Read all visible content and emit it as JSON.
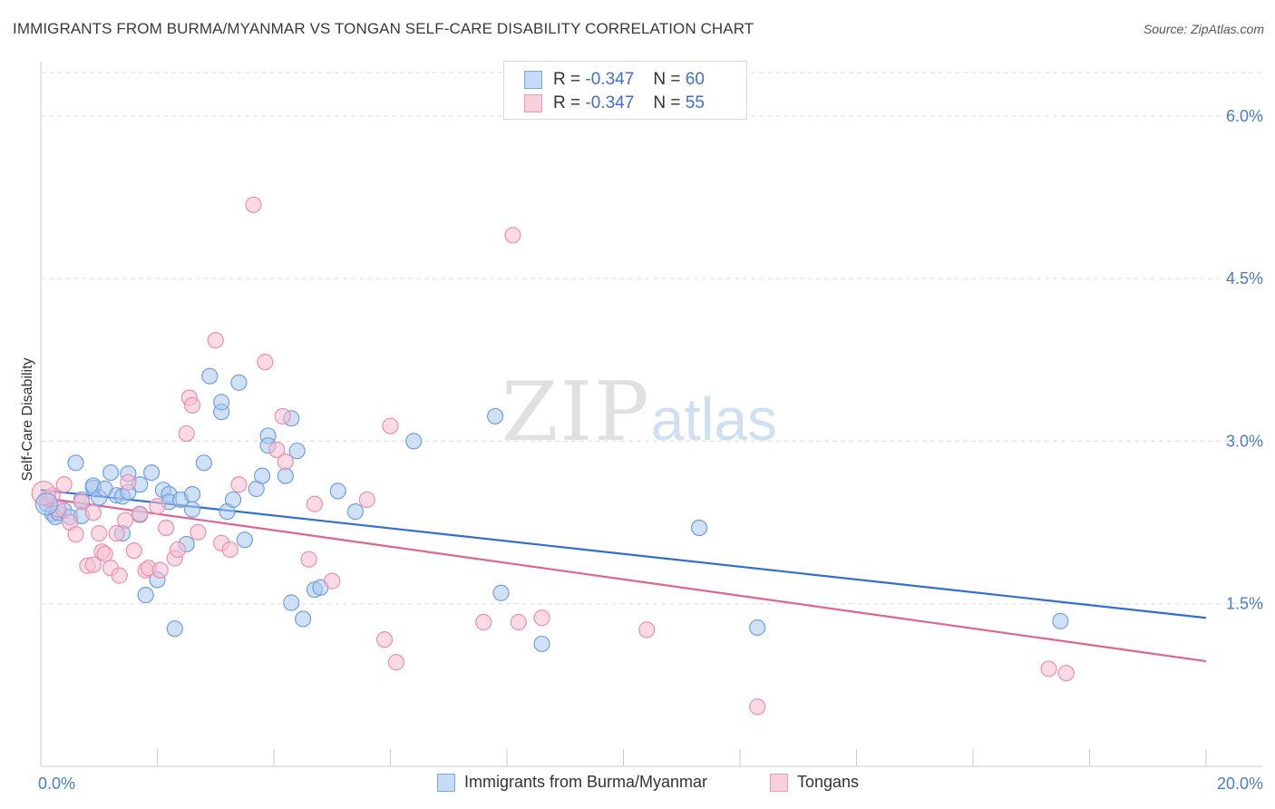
{
  "title": "IMMIGRANTS FROM BURMA/MYANMAR VS TONGAN SELF-CARE DISABILITY CORRELATION CHART",
  "source": "Source: ZipAtlas.com",
  "watermark": {
    "zip": "ZIP",
    "atlas": "atlas"
  },
  "legend": {
    "rows": [
      {
        "r_label": "R =",
        "r_value": "-0.347",
        "n_label": "N =",
        "n_value": "60"
      },
      {
        "r_label": "R =",
        "r_value": "-0.347",
        "n_label": "N =",
        "n_value": "55"
      }
    ]
  },
  "bottom_legend": [
    "Immigrants from Burma/Myanmar",
    "Tongans"
  ],
  "colors": {
    "series1_fill": "#aac8ef",
    "series1_stroke": "#6f9fe0",
    "series1_line": "#2f6fd1",
    "series2_fill": "#f6bdd0",
    "series2_stroke": "#ea8fb0",
    "series2_line": "#e06391",
    "grid": "#dddddd",
    "axis_text": "#4a7cc9"
  },
  "chart_data": {
    "type": "scatter",
    "title": "IMMIGRANTS FROM BURMA/MYANMAR VS TONGAN SELF-CARE DISABILITY CORRELATION CHART",
    "ylabel": "Self-Care Disability",
    "xlabel": "",
    "xlim": [
      0,
      20
    ],
    "ylim": [
      0,
      6.4
    ],
    "x_tick_labels": [
      "0.0%",
      "20.0%"
    ],
    "y_ticks": [
      1.5,
      3.0,
      4.5,
      6.0
    ],
    "y_tick_labels": [
      "1.5%",
      "3.0%",
      "4.5%",
      "6.0%"
    ],
    "grid": "horizontal dashed",
    "series": [
      {
        "name": "Immigrants from Burma/Myanmar",
        "R": -0.347,
        "N": 60,
        "trend": {
          "x": [
            0,
            20
          ],
          "y": [
            2.55,
            1.37
          ]
        },
        "points": [
          [
            0.1,
            2.42
          ],
          [
            0.2,
            2.33
          ],
          [
            0.25,
            2.3
          ],
          [
            0.3,
            2.34
          ],
          [
            0.4,
            2.36
          ],
          [
            0.5,
            2.3
          ],
          [
            0.6,
            2.8
          ],
          [
            0.7,
            2.31
          ],
          [
            0.7,
            2.46
          ],
          [
            0.9,
            2.57
          ],
          [
            0.9,
            2.59
          ],
          [
            1.0,
            2.48
          ],
          [
            1.1,
            2.56
          ],
          [
            1.2,
            2.71
          ],
          [
            1.3,
            2.5
          ],
          [
            1.4,
            2.49
          ],
          [
            1.4,
            2.15
          ],
          [
            1.5,
            2.53
          ],
          [
            1.5,
            2.7
          ],
          [
            1.7,
            2.6
          ],
          [
            1.7,
            2.32
          ],
          [
            1.8,
            1.58
          ],
          [
            1.9,
            2.71
          ],
          [
            2.0,
            1.72
          ],
          [
            2.1,
            2.55
          ],
          [
            2.2,
            2.51
          ],
          [
            2.2,
            2.44
          ],
          [
            2.3,
            1.27
          ],
          [
            2.4,
            2.46
          ],
          [
            2.5,
            2.05
          ],
          [
            2.6,
            2.37
          ],
          [
            2.6,
            2.51
          ],
          [
            2.8,
            2.8
          ],
          [
            2.9,
            3.6
          ],
          [
            3.1,
            3.27
          ],
          [
            3.1,
            3.36
          ],
          [
            3.2,
            2.35
          ],
          [
            3.3,
            2.46
          ],
          [
            3.4,
            3.54
          ],
          [
            3.5,
            2.09
          ],
          [
            3.7,
            2.56
          ],
          [
            3.8,
            2.68
          ],
          [
            3.9,
            3.05
          ],
          [
            3.9,
            2.96
          ],
          [
            4.2,
            2.68
          ],
          [
            4.3,
            1.51
          ],
          [
            4.3,
            3.21
          ],
          [
            4.4,
            2.91
          ],
          [
            4.5,
            1.36
          ],
          [
            4.7,
            1.63
          ],
          [
            4.8,
            1.65
          ],
          [
            5.1,
            2.54
          ],
          [
            5.4,
            2.35
          ],
          [
            6.4,
            3.0
          ],
          [
            7.8,
            3.23
          ],
          [
            7.9,
            1.6
          ],
          [
            8.6,
            1.13
          ],
          [
            11.3,
            2.2
          ],
          [
            12.3,
            1.28
          ],
          [
            17.5,
            1.34
          ]
        ]
      },
      {
        "name": "Tongans",
        "R": -0.347,
        "N": 55,
        "trend": {
          "x": [
            0,
            20
          ],
          "y": [
            2.48,
            0.97
          ]
        },
        "points": [
          [
            0.1,
            2.47
          ],
          [
            0.2,
            2.5
          ],
          [
            0.3,
            2.37
          ],
          [
            0.4,
            2.6
          ],
          [
            0.5,
            2.25
          ],
          [
            0.6,
            2.14
          ],
          [
            0.7,
            2.44
          ],
          [
            0.8,
            1.85
          ],
          [
            0.9,
            1.86
          ],
          [
            0.9,
            2.34
          ],
          [
            1.0,
            2.15
          ],
          [
            1.05,
            1.98
          ],
          [
            1.1,
            1.96
          ],
          [
            1.2,
            1.83
          ],
          [
            1.3,
            2.15
          ],
          [
            1.35,
            1.76
          ],
          [
            1.45,
            2.27
          ],
          [
            1.5,
            2.62
          ],
          [
            1.6,
            1.99
          ],
          [
            1.7,
            2.33
          ],
          [
            1.8,
            1.81
          ],
          [
            1.85,
            1.83
          ],
          [
            2.0,
            2.4
          ],
          [
            2.05,
            1.81
          ],
          [
            2.15,
            2.2
          ],
          [
            2.3,
            1.92
          ],
          [
            2.35,
            2.0
          ],
          [
            2.5,
            3.07
          ],
          [
            2.55,
            3.4
          ],
          [
            2.6,
            3.33
          ],
          [
            2.7,
            2.16
          ],
          [
            3.0,
            3.93
          ],
          [
            3.1,
            2.06
          ],
          [
            3.25,
            2.0
          ],
          [
            3.4,
            2.6
          ],
          [
            3.65,
            5.18
          ],
          [
            3.85,
            3.73
          ],
          [
            4.05,
            2.92
          ],
          [
            4.15,
            3.23
          ],
          [
            4.2,
            2.81
          ],
          [
            4.6,
            1.91
          ],
          [
            4.7,
            2.42
          ],
          [
            5.0,
            1.71
          ],
          [
            5.6,
            2.46
          ],
          [
            5.9,
            1.17
          ],
          [
            6.0,
            3.14
          ],
          [
            6.1,
            0.96
          ],
          [
            7.6,
            1.33
          ],
          [
            8.1,
            4.9
          ],
          [
            8.2,
            1.33
          ],
          [
            8.6,
            1.37
          ],
          [
            10.4,
            1.26
          ],
          [
            12.3,
            0.55
          ],
          [
            17.3,
            0.9
          ],
          [
            17.6,
            0.86
          ]
        ]
      }
    ]
  }
}
